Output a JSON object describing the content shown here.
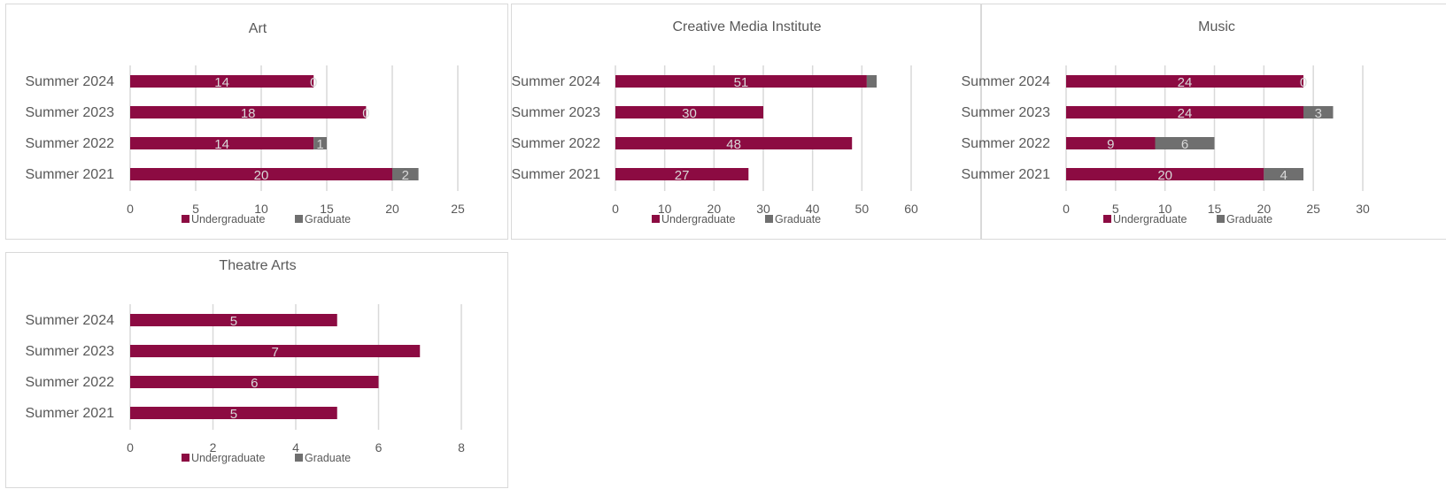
{
  "colors": {
    "undergraduate": "#8c0b42",
    "graduate": "#6f6f6f",
    "grid": "#d9d9d9",
    "text": "#595959",
    "label": "#d9d9d9"
  },
  "chart_data": [
    {
      "type": "bar",
      "orientation": "horizontal",
      "stacked": true,
      "title": "Art",
      "categories": [
        "Summer 2024",
        "Summer 2023",
        "Summer 2022",
        "Summer 2021"
      ],
      "series": [
        {
          "name": "Undergraduate",
          "values": [
            14,
            18,
            14,
            20
          ]
        },
        {
          "name": "Graduate",
          "values": [
            0,
            0,
            1,
            2
          ]
        }
      ],
      "xlim": [
        0,
        25
      ],
      "xticks": [
        "0",
        "5",
        "10",
        "15",
        "20",
        "25"
      ],
      "grid": true,
      "legend": "bottom"
    },
    {
      "type": "bar",
      "orientation": "horizontal",
      "stacked": true,
      "title": "Creative Media Institute",
      "categories": [
        "Summer 2024",
        "Summer 2023",
        "Summer 2022",
        "Summer 2021"
      ],
      "series": [
        {
          "name": "Undergraduate",
          "values": [
            51,
            30,
            48,
            27
          ]
        },
        {
          "name": "Graduate",
          "values": [
            2,
            null,
            null,
            null
          ]
        }
      ],
      "xlim": [
        0,
        60
      ],
      "xticks": [
        "0",
        "10",
        "20",
        "30",
        "40",
        "50",
        "60"
      ],
      "grid": true,
      "legend": "bottom"
    },
    {
      "type": "bar",
      "orientation": "horizontal",
      "stacked": true,
      "title": "Music",
      "categories": [
        "Summer 2024",
        "Summer 2023",
        "Summer 2022",
        "Summer 2021"
      ],
      "series": [
        {
          "name": "Undergraduate",
          "values": [
            24,
            24,
            9,
            20
          ]
        },
        {
          "name": "Graduate",
          "values": [
            0,
            3,
            6,
            4
          ]
        }
      ],
      "xlim": [
        0,
        30
      ],
      "xticks": [
        "0",
        "5",
        "10",
        "15",
        "20",
        "25",
        "30"
      ],
      "grid": true,
      "legend": "bottom"
    },
    {
      "type": "bar",
      "orientation": "horizontal",
      "stacked": true,
      "title": "Theatre Arts",
      "categories": [
        "Summer 2024",
        "Summer 2023",
        "Summer 2022",
        "Summer 2021"
      ],
      "series": [
        {
          "name": "Undergraduate",
          "values": [
            5,
            7,
            6,
            5
          ]
        },
        {
          "name": "Graduate",
          "values": [
            null,
            null,
            null,
            null
          ]
        }
      ],
      "xlim": [
        0,
        8
      ],
      "xticks": [
        "0",
        "2",
        "4",
        "6",
        "8"
      ],
      "grid": true,
      "legend": "bottom"
    }
  ]
}
